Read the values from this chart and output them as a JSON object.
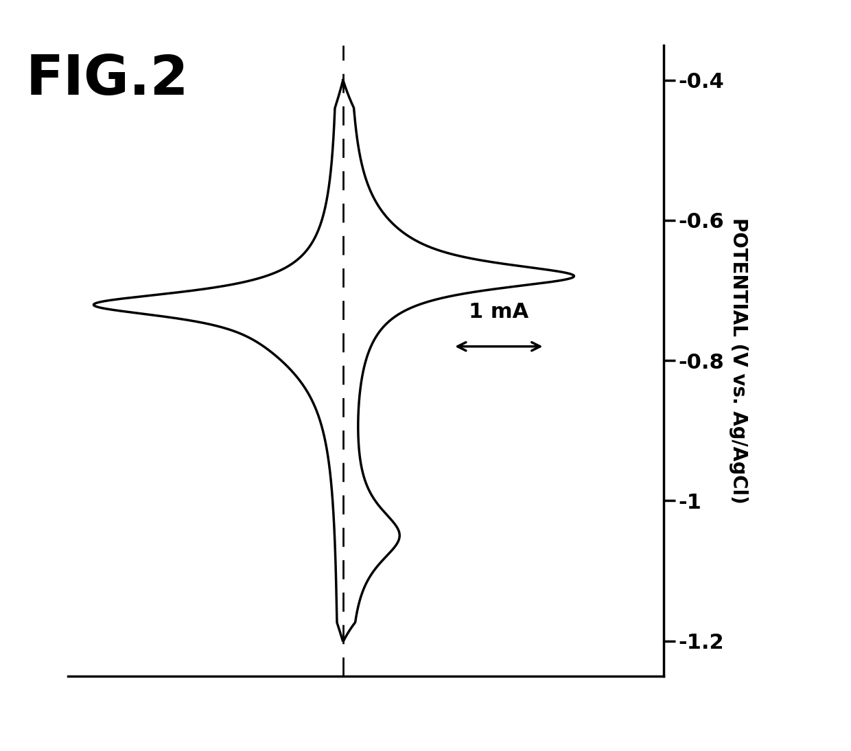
{
  "ylabel": "POTENTIAL (V vs. Ag/AgCl)",
  "ylim": [
    -1.25,
    -0.35
  ],
  "yticks": [
    -1.2,
    -1.0,
    -0.8,
    -0.6,
    -0.4
  ],
  "ytick_labels": [
    "-1.2",
    "-1",
    "-0.8",
    "-0.6",
    "-0.4"
  ],
  "xlim": [
    -3.0,
    3.5
  ],
  "background_color": "#ffffff",
  "line_color": "#000000",
  "line_width": 2.5,
  "peak_potential": -0.7,
  "dashed_x": 0.0,
  "scale_bar_label": "1 mA",
  "scale_bar_x_left": 1.2,
  "scale_bar_x_right": 2.2,
  "scale_bar_y": -0.78,
  "figure_label": "FIG.2",
  "fig_label_fontsize": 58,
  "tick_fontsize": 22,
  "ylabel_fontsize": 20,
  "scalebar_fontsize": 22
}
